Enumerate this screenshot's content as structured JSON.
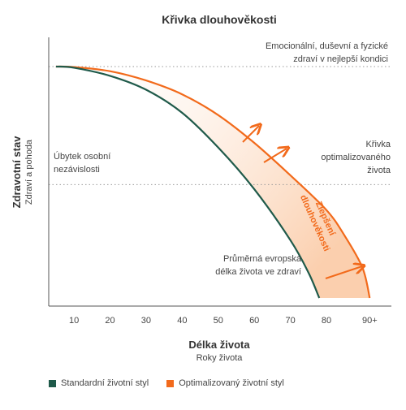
{
  "chart_data": {
    "type": "area",
    "title": "Křivka dlouhověkosti",
    "xlabel": "Délka života",
    "xlabel_sub": "Roky života",
    "ylabel": "Zdravotní stav",
    "ylabel_sub": "Zdraví a pohoda",
    "x_ticks": [
      "10",
      "20",
      "30",
      "40",
      "50",
      "60",
      "70",
      "80",
      "90+"
    ],
    "x_tick_values": [
      10,
      20,
      30,
      40,
      50,
      60,
      70,
      80,
      92
    ],
    "xlim": [
      3,
      98
    ],
    "ylim": [
      0,
      100
    ],
    "grid": false,
    "series": [
      {
        "name": "Standardní životní styl",
        "color": "#1f5a4a",
        "x": [
          5,
          10,
          20,
          30,
          40,
          50,
          60,
          70,
          75,
          78
        ],
        "y": [
          100,
          99.5,
          96,
          90,
          80,
          65,
          47,
          25,
          11,
          0
        ]
      },
      {
        "name": "Optimalizovaný životní styl",
        "color": "#f26a1b",
        "x": [
          5,
          10,
          20,
          30,
          40,
          50,
          60,
          70,
          80,
          85,
          90,
          92
        ],
        "y": [
          100,
          99.8,
          98,
          94,
          88,
          79,
          67,
          53,
          38,
          27,
          13,
          0
        ]
      }
    ],
    "reference_lines": [
      {
        "label": "Emocionální, duševní a fyzické zdraví v nejlepší kondici",
        "y": 100
      },
      {
        "label": "Křivka optimalizovaného života",
        "y": 49
      }
    ],
    "annotations": [
      {
        "text": "Úbytek osobní nezávislosti"
      },
      {
        "text": "Průměrná evropská délka života ve zdraví"
      },
      {
        "text": "Zlepšení dlouhověkosti"
      }
    ],
    "legend_position": "bottom-left",
    "fill_color": "#fde3cf",
    "arrow_color": "#f26a1b"
  }
}
